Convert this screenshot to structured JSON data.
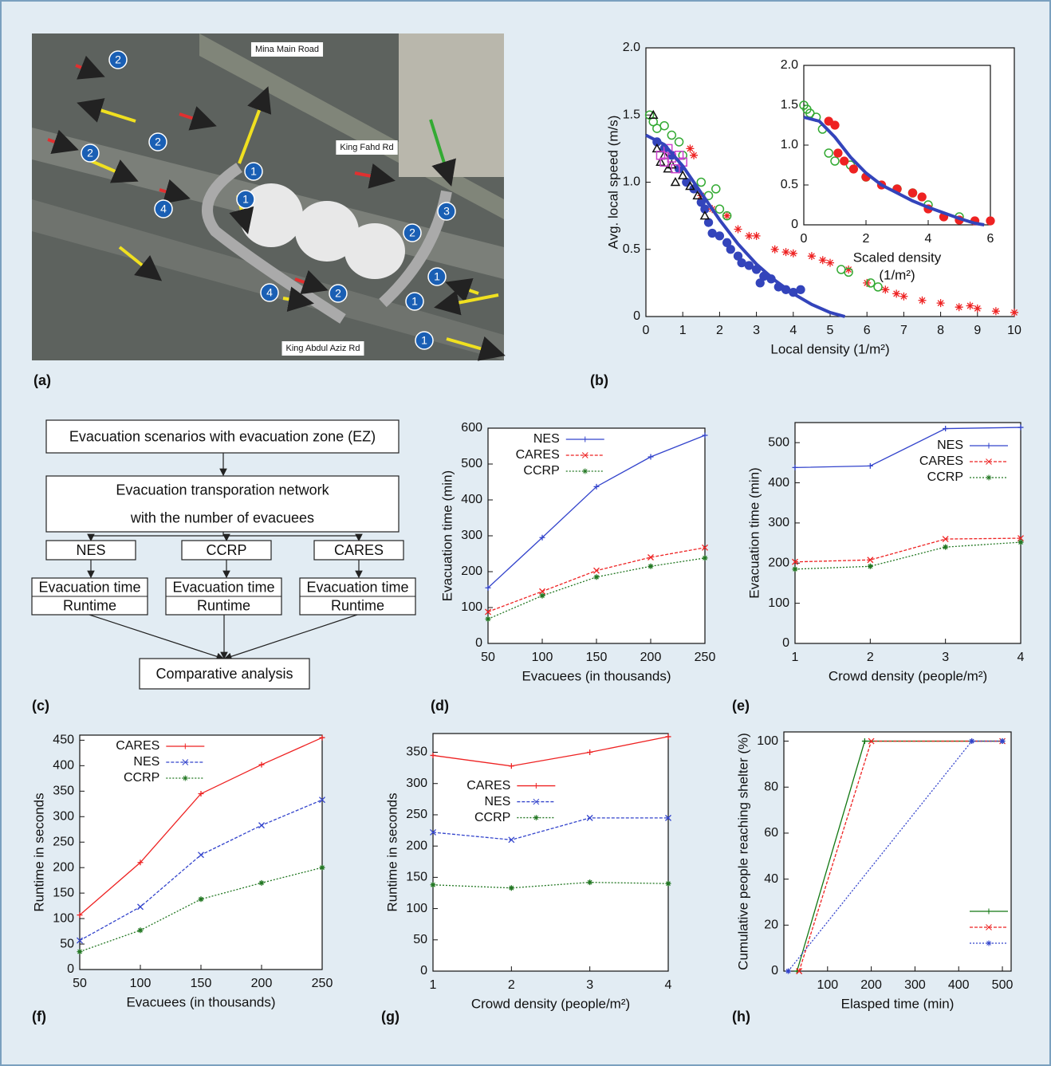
{
  "map": {
    "panel": "(a)",
    "roads": [
      "Mina Main Road",
      "King Fahd Rd",
      "King Abdul Aziz Rd"
    ],
    "markers": [
      "2",
      "2",
      "2",
      "1",
      "1",
      "4",
      "2",
      "3",
      "1",
      "4",
      "2",
      "1",
      "1"
    ]
  },
  "flowchart": {
    "panel": "(c)",
    "nodes": [
      {
        "lines": [
          "Evacuation scenarios with evacuation zone (EZ)"
        ]
      },
      {
        "lines": [
          "Evacuation transporation network",
          "with the number of evacuees"
        ]
      },
      {
        "lines": [
          "NES"
        ]
      },
      {
        "lines": [
          "CCRP"
        ]
      },
      {
        "lines": [
          "CARES"
        ]
      },
      {
        "lines": [
          "Evacuation time",
          "Runtime"
        ]
      },
      {
        "lines": [
          "Evacuation time",
          "Runtime"
        ]
      },
      {
        "lines": [
          "Evacuation time",
          "Runtime"
        ]
      },
      {
        "lines": [
          "Comparative analysis"
        ]
      }
    ]
  },
  "chart_data": [
    {
      "type": "scatter",
      "panel": "(b)",
      "xlabel": "Local density (1/m²)",
      "ylabel": "Avg. local speed (m/s)",
      "xlim": [
        0,
        10
      ],
      "ylim": [
        0,
        2
      ],
      "xticks": [
        0,
        1,
        2,
        3,
        4,
        5,
        6,
        7,
        8,
        9,
        10
      ],
      "yticks": [
        0,
        0.5,
        {
          "value": 1,
          "label": "1.0"
        },
        1.5,
        {
          "value": 2,
          "label": "2.0"
        }
      ],
      "series": [
        {
          "color": "#3344bb",
          "marker": "dot",
          "x": [
            0.3,
            0.5,
            0.7,
            0.9,
            1.1,
            1.3,
            1.5,
            1.7,
            1.8,
            2.0,
            2.2,
            2.5,
            2.8,
            3.0,
            3.2,
            3.4,
            3.6,
            3.8,
            4.0,
            4.2,
            2.3,
            1.6,
            3.1,
            2.6
          ],
          "values": [
            1.3,
            1.25,
            1.2,
            1.1,
            1.0,
            0.95,
            0.85,
            0.7,
            0.62,
            0.6,
            0.55,
            0.45,
            0.38,
            0.35,
            0.3,
            0.28,
            0.22,
            0.2,
            0.18,
            0.2,
            0.5,
            0.8,
            0.25,
            0.4
          ]
        },
        {
          "color": "#ee2222",
          "marker": "star",
          "x": [
            1.2,
            1.3,
            1.5,
            1.8,
            2.2,
            2.5,
            3.0,
            3.5,
            4.0,
            4.5,
            5.0,
            5.5,
            6.0,
            6.5,
            7.0,
            7.5,
            8.0,
            8.5,
            9.0,
            9.5,
            10.0,
            4.8,
            6.8,
            8.8,
            2.8,
            3.8
          ],
          "values": [
            1.25,
            1.2,
            0.9,
            0.8,
            0.75,
            0.65,
            0.6,
            0.5,
            0.47,
            0.45,
            0.4,
            0.35,
            0.25,
            0.2,
            0.15,
            0.12,
            0.1,
            0.07,
            0.06,
            0.04,
            0.03,
            0.42,
            0.17,
            0.08,
            0.6,
            0.48
          ]
        },
        {
          "color": "#33aa33",
          "marker": "ring",
          "x": [
            0.1,
            0.2,
            0.3,
            0.5,
            0.7,
            0.9,
            1.0,
            1.5,
            1.7,
            2.0,
            2.2,
            1.9,
            5.3,
            5.5,
            6.1,
            6.3
          ],
          "values": [
            1.5,
            1.45,
            1.4,
            1.42,
            1.35,
            1.3,
            1.2,
            1.0,
            0.9,
            0.8,
            0.75,
            0.95,
            0.35,
            0.33,
            0.25,
            0.22
          ]
        },
        {
          "color": "#111111",
          "marker": "triangle",
          "x": [
            0.2,
            0.3,
            0.4,
            0.5,
            0.6,
            0.8,
            1.0,
            1.2,
            1.4,
            1.6,
            0.7
          ],
          "values": [
            1.5,
            1.25,
            1.15,
            1.2,
            1.1,
            1.0,
            1.05,
            0.97,
            0.9,
            0.75,
            1.13
          ]
        },
        {
          "color": "#cc44cc",
          "marker": "square",
          "x": [
            0.4,
            0.5,
            0.6,
            0.7,
            0.8,
            0.9,
            1.0
          ],
          "values": [
            1.2,
            1.15,
            1.25,
            1.18,
            1.1,
            1.2,
            1.15
          ]
        },
        {
          "color": "#3344bb",
          "style": "line",
          "x": [
            0,
            0.5,
            1,
            1.5,
            2,
            2.5,
            3,
            3.5,
            4,
            4.5,
            5,
            5.4
          ],
          "values": [
            1.35,
            1.28,
            1.12,
            0.92,
            0.72,
            0.54,
            0.39,
            0.27,
            0.17,
            0.09,
            0.03,
            0
          ]
        }
      ]
    },
    {
      "type": "scatter",
      "xlabel": "Scaled density",
      "xlabel2": "(1/m²)",
      "xlim": [
        0,
        6
      ],
      "ylim": [
        0,
        2
      ],
      "xticks": [
        0,
        2,
        4,
        6
      ],
      "yticks": [
        0,
        0.5,
        {
          "value": 1,
          "label": "1.0"
        },
        1.5,
        {
          "value": 2,
          "label": "2.0"
        }
      ],
      "series": [
        {
          "color": "#33aa33",
          "marker": "ring",
          "x": [
            0,
            0.1,
            0.2,
            0.4,
            0.6,
            0.8,
            1.0,
            1.5,
            2.0,
            3.0,
            3.5,
            4.0,
            5.0
          ],
          "values": [
            1.5,
            1.45,
            1.4,
            1.35,
            1.2,
            0.9,
            0.8,
            0.75,
            0.6,
            0.45,
            0.4,
            0.25,
            0.1
          ]
        },
        {
          "color": "#ee2222",
          "marker": "dot",
          "x": [
            0.8,
            1.0,
            1.1,
            1.3,
            1.6,
            2.0,
            2.5,
            3.0,
            3.5,
            3.8,
            4.0,
            4.5,
            5.0,
            5.5,
            6.0
          ],
          "values": [
            1.3,
            1.25,
            0.9,
            0.8,
            0.7,
            0.6,
            0.5,
            0.45,
            0.4,
            0.35,
            0.2,
            0.1,
            0.06,
            0.05,
            0.05
          ]
        },
        {
          "color": "#3344bb",
          "style": "line",
          "x": [
            0,
            0.5,
            1,
            1.5,
            2,
            2.5,
            3,
            3.5,
            4,
            4.5,
            5,
            5.5,
            5.8
          ],
          "values": [
            1.35,
            1.3,
            1.1,
            0.85,
            0.65,
            0.5,
            0.4,
            0.3,
            0.22,
            0.15,
            0.08,
            0.02,
            0
          ]
        }
      ]
    },
    {
      "type": "line",
      "panel": "(d)",
      "xlabel": "Evacuees (in thousands)",
      "ylabel": "Evacuation time (min)",
      "legend": "upper left",
      "x": [
        50,
        100,
        150,
        200,
        250
      ],
      "xlim": [
        50,
        250
      ],
      "ylim": [
        0,
        600
      ],
      "xticks": [
        50,
        100,
        150,
        200,
        250
      ],
      "yticks": [
        0,
        100,
        200,
        300,
        400,
        500,
        600
      ],
      "series": [
        {
          "name": "NES",
          "color": "#3344cc",
          "marker": "+",
          "dash": "none",
          "values": [
            155,
            295,
            437,
            520,
            580
          ]
        },
        {
          "name": "CARES",
          "color": "#ee2222",
          "marker": "x",
          "dash": "4 2",
          "values": [
            88,
            145,
            203,
            240,
            267
          ]
        },
        {
          "name": "CCRP",
          "color": "#227722",
          "marker": "*",
          "dash": "2 2",
          "values": [
            68,
            133,
            185,
            215,
            238
          ]
        }
      ]
    },
    {
      "type": "line",
      "panel": "(e)",
      "xlabel": "Crowd density (people/m²)",
      "ylabel": "Evacuation time (min)",
      "legend": "upper right",
      "x": [
        1,
        2,
        3,
        4
      ],
      "xlim": [
        1,
        4
      ],
      "ylim": [
        0,
        550
      ],
      "xticks": [
        1,
        2,
        3,
        4
      ],
      "yticks": [
        0,
        100,
        200,
        300,
        400,
        500
      ],
      "series": [
        {
          "name": "NES",
          "color": "#3344cc",
          "marker": "+",
          "dash": "none",
          "values": [
            438,
            442,
            535,
            538
          ]
        },
        {
          "name": "CARES",
          "color": "#ee2222",
          "marker": "x",
          "dash": "4 2",
          "values": [
            203,
            208,
            260,
            262
          ]
        },
        {
          "name": "CCRP",
          "color": "#227722",
          "marker": "*",
          "dash": "2 2",
          "values": [
            185,
            192,
            240,
            252
          ]
        }
      ]
    },
    {
      "type": "line",
      "panel": "(f)",
      "xlabel": "Evacuees (in thousands)",
      "ylabel": "Runtime in seconds",
      "legend": "upper left",
      "x": [
        50,
        100,
        150,
        200,
        250
      ],
      "xlim": [
        50,
        250
      ],
      "ylim": [
        0,
        460
      ],
      "xticks": [
        50,
        100,
        150,
        200,
        250
      ],
      "yticks": [
        0,
        50,
        100,
        150,
        200,
        250,
        300,
        350,
        400,
        450
      ],
      "series": [
        {
          "name": "CARES",
          "color": "#ee2222",
          "marker": "+",
          "dash": "none",
          "values": [
            107,
            210,
            345,
            402,
            455
          ]
        },
        {
          "name": "NES",
          "color": "#3344cc",
          "marker": "x",
          "dash": "4 2",
          "values": [
            57,
            123,
            225,
            283,
            333
          ]
        },
        {
          "name": "CCRP",
          "color": "#227722",
          "marker": "*",
          "dash": "2 2",
          "values": [
            35,
            77,
            138,
            170,
            200
          ]
        }
      ]
    },
    {
      "type": "line",
      "panel": "(g)",
      "xlabel": "Crowd density (people/m²)",
      "ylabel": "Runtime in seconds",
      "legend": "center",
      "x": [
        1,
        2,
        3,
        4
      ],
      "xlim": [
        1,
        4
      ],
      "ylim": [
        0,
        380
      ],
      "xticks": [
        1,
        2,
        3,
        4
      ],
      "yticks": [
        0,
        50,
        100,
        150,
        200,
        250,
        300,
        350
      ],
      "series": [
        {
          "name": "CARES",
          "color": "#ee2222",
          "marker": "+",
          "dash": "none",
          "values": [
            345,
            328,
            350,
            375
          ]
        },
        {
          "name": "NES",
          "color": "#3344cc",
          "marker": "x",
          "dash": "4 2",
          "values": [
            222,
            210,
            245,
            245
          ]
        },
        {
          "name": "CCRP",
          "color": "#227722",
          "marker": "*",
          "dash": "2 2",
          "values": [
            138,
            133,
            142,
            140
          ]
        }
      ]
    },
    {
      "type": "line",
      "panel": "(h)",
      "xlabel": "Elasped time (min)",
      "ylabel": "Cumulative people reaching shelter (%)",
      "legend": "lower right",
      "xlim": [
        0,
        520
      ],
      "ylim": [
        0,
        104
      ],
      "xticks": [
        100,
        200,
        300,
        400,
        500
      ],
      "yticks": [
        0,
        20,
        40,
        60,
        80,
        100
      ],
      "series": [
        {
          "color": "#117711",
          "marker": "+",
          "dash": "none",
          "x": [
            30,
            185,
            500
          ],
          "values": [
            0,
            100,
            100
          ]
        },
        {
          "color": "#ee2222",
          "marker": "x",
          "dash": "4 2",
          "x": [
            35,
            200,
            500
          ],
          "values": [
            0,
            100,
            100
          ]
        },
        {
          "color": "#3344cc",
          "marker": "*",
          "dash": "2 2",
          "x": [
            10,
            430,
            500
          ],
          "values": [
            0,
            100,
            100
          ]
        }
      ]
    }
  ]
}
